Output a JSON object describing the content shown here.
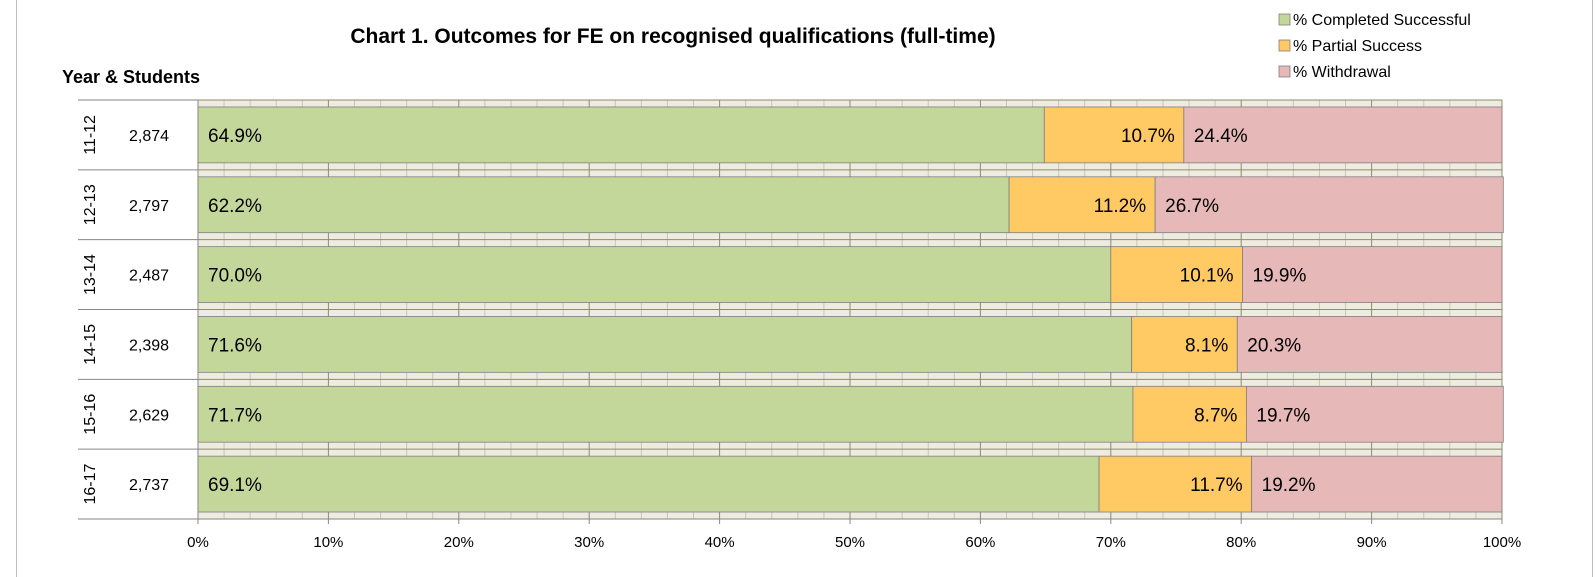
{
  "chart_data": {
    "type": "bar",
    "orientation": "horizontal",
    "stacked": "percent",
    "title": "Chart 1. Outcomes for FE on recognised qualifications (full-time)",
    "ylabel": "Year & Students",
    "categories": [
      "11-12",
      "12-13",
      "13-14",
      "14-15",
      "15-16",
      "16-17"
    ],
    "students": [
      "2,874",
      "2,797",
      "2,487",
      "2,398",
      "2,629",
      "2,737"
    ],
    "series": [
      {
        "name": "% Completed Successful",
        "color": "#c4d79b",
        "values": [
          64.9,
          62.2,
          70.0,
          71.6,
          71.7,
          69.1
        ],
        "labels": [
          "64.9%",
          "62.2%",
          "70.0%",
          "71.6%",
          "71.7%",
          "69.1%"
        ]
      },
      {
        "name": "% Partial Success",
        "color": "#ffc963",
        "values": [
          10.7,
          11.2,
          10.1,
          8.1,
          8.7,
          11.7
        ],
        "labels": [
          "10.7%",
          "11.2%",
          "10.1%",
          "8.1%",
          "8.7%",
          "11.7%"
        ]
      },
      {
        "name": "% Withdrawal",
        "color": "#e6b8b8",
        "values": [
          24.4,
          26.7,
          19.9,
          20.3,
          19.7,
          19.2
        ],
        "labels": [
          "24.4%",
          "26.7%",
          "19.9%",
          "20.3%",
          "19.7%",
          "19.2%"
        ]
      }
    ],
    "xticks": [
      "0%",
      "10%",
      "20%",
      "30%",
      "40%",
      "50%",
      "60%",
      "70%",
      "80%",
      "90%",
      "100%"
    ],
    "xlim": [
      0,
      100
    ],
    "grid": true,
    "legend": "top-right"
  }
}
